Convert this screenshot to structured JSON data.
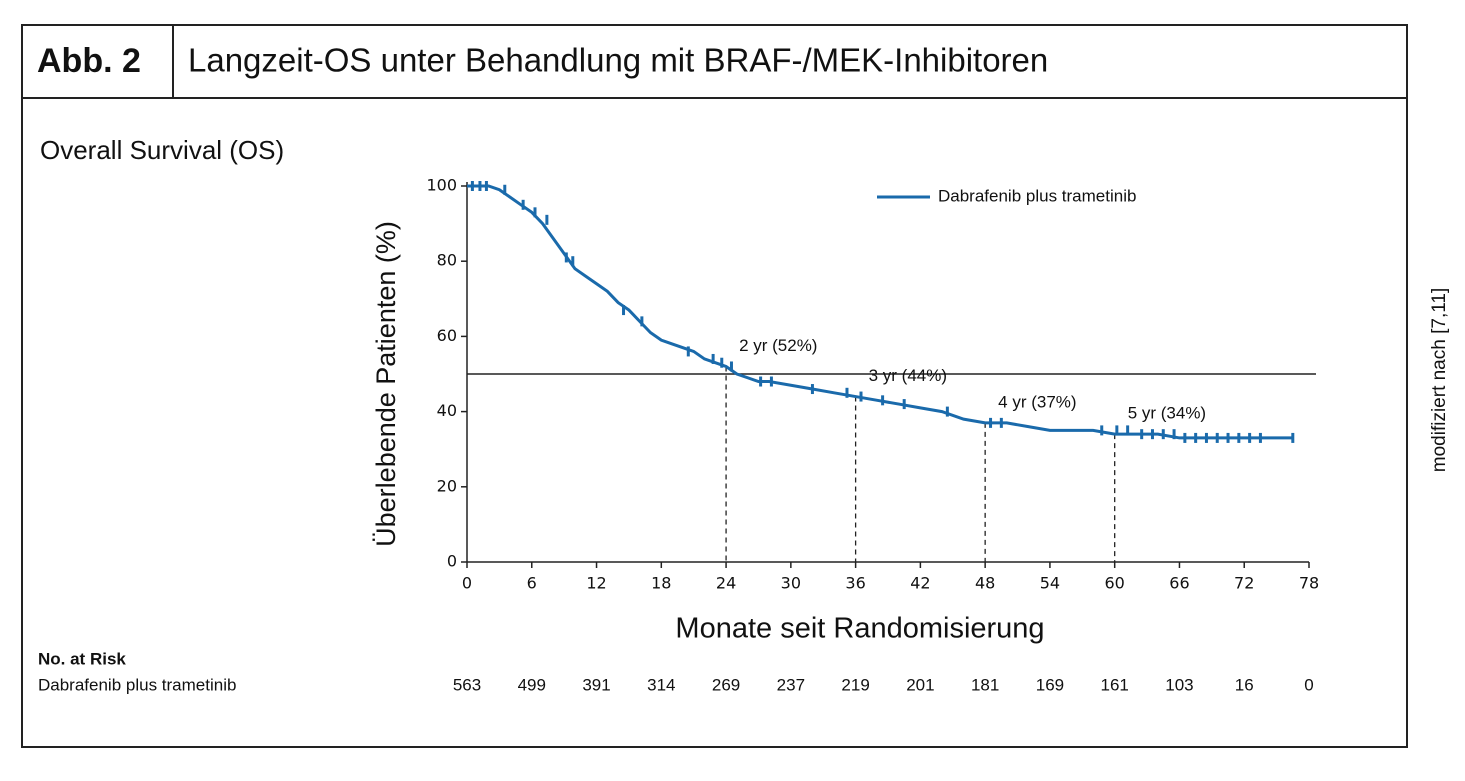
{
  "header": {
    "label": "Abb. 2",
    "title": "Langzeit-OS unter Behandlung mit BRAF-/MEK-Inhibitoren"
  },
  "source_note": "modifiziert nach [7,11]",
  "chart_data": {
    "type": "line",
    "subtitle": "Overall Survival (OS)",
    "xlabel": "Monate seit Randomisierung",
    "ylabel": "Überlebende Patienten (%)",
    "x": [
      0,
      2,
      3,
      4,
      5,
      6,
      7,
      8,
      9,
      10,
      11,
      12,
      13,
      14,
      15,
      16,
      17,
      18,
      19,
      20,
      21,
      22,
      23,
      24,
      25,
      26,
      27,
      28,
      30,
      32,
      34,
      36,
      38,
      40,
      42,
      44,
      46,
      48,
      50,
      52,
      54,
      56,
      58,
      60,
      62,
      64,
      66,
      68,
      70,
      72,
      74,
      76.5
    ],
    "series": [
      {
        "name": "Dabrafenib plus trametinib",
        "color": "#1a6aab",
        "values": [
          100,
          100,
          99,
          97,
          95,
          93,
          90,
          86,
          82,
          78,
          76,
          74,
          72,
          69,
          67,
          64,
          61,
          59,
          58,
          57,
          56,
          54,
          53,
          52,
          50,
          49,
          48,
          48,
          47,
          46,
          45,
          44,
          43,
          42,
          41,
          40,
          38,
          37,
          37,
          36,
          35,
          35,
          35,
          34,
          34,
          34,
          33,
          33,
          33,
          33,
          33,
          33
        ]
      }
    ],
    "censor": {
      "x": [
        0.5,
        1.2,
        1.8,
        3.5,
        5.2,
        6.3,
        7.4,
        9.2,
        9.8,
        14.5,
        16.2,
        20.5,
        22.8,
        23.6,
        24.5,
        27.2,
        28.2,
        32,
        35.2,
        36.5,
        38.5,
        40.5,
        44.5,
        48.5,
        49.5,
        58.8,
        60.2,
        61.2,
        62.5,
        63.5,
        64.5,
        65.5,
        66.5,
        67.5,
        68.5,
        69.5,
        70.5,
        71.5,
        72.5,
        73.5,
        76.5
      ],
      "y": [
        100,
        100,
        100,
        99,
        95,
        93,
        91,
        81,
        80,
        67,
        64,
        56,
        54,
        53,
        52,
        48,
        48,
        46,
        45,
        44,
        43,
        42,
        40,
        37,
        37,
        35,
        35,
        35,
        34,
        34,
        34,
        34,
        33,
        33,
        33,
        33,
        33,
        33,
        33,
        33,
        33
      ]
    },
    "reference_line": 50,
    "annotations": [
      {
        "label": "2 yr (52%)",
        "x": 24,
        "y": 52
      },
      {
        "label": "3 yr (44%)",
        "x": 36,
        "y": 44
      },
      {
        "label": "4 yr (37%)",
        "x": 48,
        "y": 37
      },
      {
        "label": "5 yr (34%)",
        "x": 60,
        "y": 34
      }
    ],
    "xlim": [
      0,
      78
    ],
    "xticks": [
      0,
      6,
      12,
      18,
      24,
      30,
      36,
      42,
      48,
      54,
      60,
      66,
      72,
      78
    ],
    "ylim": [
      0,
      100
    ],
    "yticks": [
      0,
      20,
      40,
      60,
      80,
      100
    ],
    "legend": "upper right",
    "risk_table": {
      "title": "No. at Risk",
      "row_label": "Dabrafenib plus trametinib",
      "values": [
        563,
        499,
        391,
        314,
        269,
        237,
        219,
        201,
        181,
        169,
        161,
        103,
        16,
        0
      ]
    }
  }
}
